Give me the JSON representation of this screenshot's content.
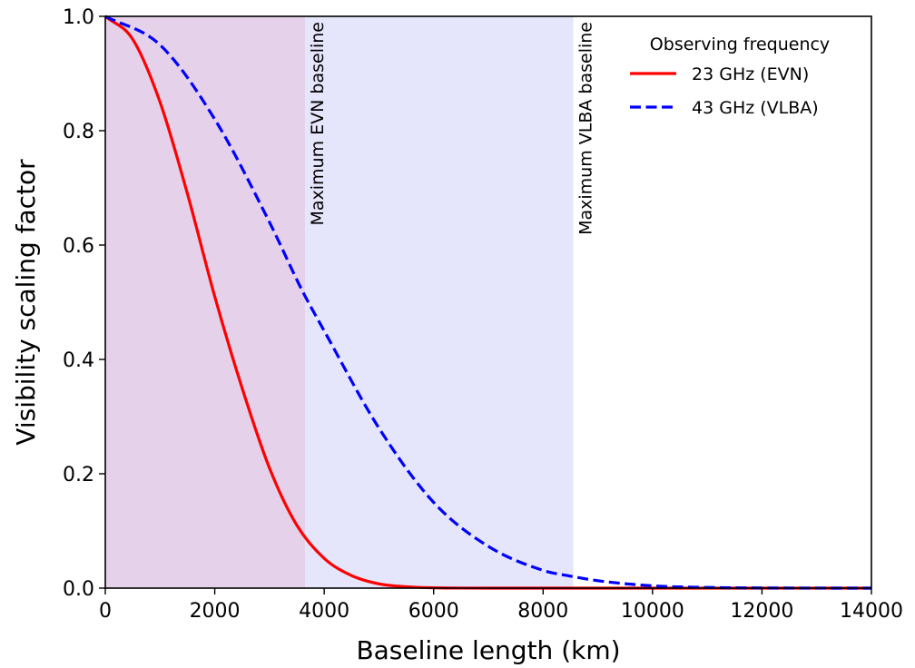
{
  "chart_data": {
    "type": "line",
    "title": "",
    "xlabel": "Baseline length (km)",
    "ylabel": "Visibility scaling factor",
    "xlim": [
      0,
      14000
    ],
    "ylim": [
      0.0,
      1.0
    ],
    "x_ticks": [
      0,
      2000,
      4000,
      6000,
      8000,
      10000,
      12000,
      14000
    ],
    "x_tick_labels": [
      "0",
      "2000",
      "4000",
      "6000",
      "8000",
      "10000",
      "12000",
      "14000"
    ],
    "y_ticks": [
      0.0,
      0.2,
      0.4,
      0.6,
      0.8,
      1.0
    ],
    "y_tick_labels": [
      "0.0",
      "0.2",
      "0.4",
      "0.6",
      "0.8",
      "1.0"
    ],
    "grid": false,
    "legend": {
      "title": "Observing frequency",
      "placement": "top-right",
      "frame": false
    },
    "series": [
      {
        "name": "23 GHz (EVN)",
        "color": "#ff0000",
        "style": "solid",
        "x": [
          0,
          500,
          1000,
          1500,
          2000,
          2500,
          3000,
          3500,
          4000,
          4500,
          5000,
          5500,
          6000,
          7000,
          8000,
          10000,
          14000
        ],
        "y": [
          1.0,
          0.96,
          0.85,
          0.69,
          0.51,
          0.35,
          0.21,
          0.11,
          0.052,
          0.022,
          0.0075,
          0.0025,
          0.0006,
          0.0,
          0.0,
          0.0,
          0.0
        ]
      },
      {
        "name": "43 GHz (VLBA)",
        "color": "#0000ff",
        "style": "dashed",
        "x": [
          0,
          1000,
          2000,
          3000,
          3600,
          4000,
          5000,
          6000,
          7000,
          8000,
          8500,
          9000,
          10000,
          11000,
          12000,
          14000
        ],
        "y": [
          1.0,
          0.95,
          0.82,
          0.64,
          0.52,
          0.45,
          0.28,
          0.15,
          0.073,
          0.031,
          0.021,
          0.013,
          0.004,
          0.0012,
          0.0003,
          0.0
        ]
      }
    ],
    "shaded_regions": [
      {
        "x0": 0,
        "x1": 3650,
        "color": "#e6d1ea"
      },
      {
        "x0": 3650,
        "x1": 8550,
        "color": "#e5e5fc"
      }
    ],
    "annotations": [
      {
        "x": 3650,
        "text": "Maximum EVN baseline"
      },
      {
        "x": 8550,
        "text": "Maximum VLBA baseline"
      }
    ]
  }
}
